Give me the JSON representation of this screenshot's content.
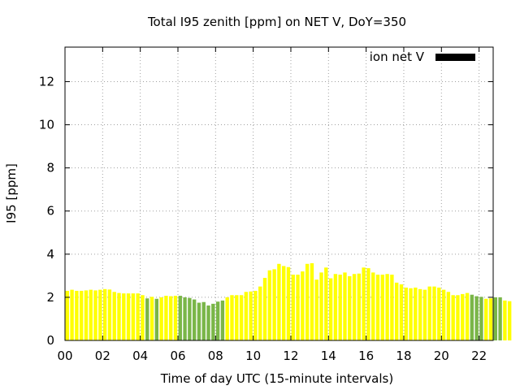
{
  "chart_data": {
    "type": "bar",
    "title": "Total I95 zenith [ppm] on NET V, DoY=350",
    "xlabel": "Time of day UTC (15-minute intervals)",
    "ylabel": "I95 [ppm]",
    "xlim": [
      0,
      22.75
    ],
    "ylim": [
      0,
      13.6
    ],
    "x_ticks": [
      "00",
      "02",
      "04",
      "06",
      "08",
      "10",
      "12",
      "14",
      "16",
      "18",
      "20",
      "22"
    ],
    "y_ticks": [
      "0",
      "2",
      "4",
      "6",
      "8",
      "10",
      "12"
    ],
    "grid": true,
    "legend": {
      "position": "top-right",
      "label": "ion net V",
      "color": "#000000"
    },
    "colors": {
      "yellow": "#ffff00",
      "green": "#7ab648"
    },
    "interval_hours": 0.25,
    "series": [
      {
        "name": "ion net V",
        "values": [
          2.3,
          2.35,
          2.3,
          2.3,
          2.32,
          2.35,
          2.32,
          2.35,
          2.38,
          2.36,
          2.25,
          2.2,
          2.18,
          2.18,
          2.18,
          2.18,
          2.1,
          1.95,
          2.02,
          1.93,
          2.0,
          2.07,
          2.05,
          2.07,
          2.07,
          2.0,
          1.97,
          1.9,
          1.75,
          1.78,
          1.62,
          1.7,
          1.8,
          1.85,
          2.0,
          2.1,
          2.1,
          2.1,
          2.25,
          2.27,
          2.3,
          2.5,
          2.9,
          3.25,
          3.3,
          3.55,
          3.45,
          3.4,
          3.05,
          3.05,
          3.2,
          3.55,
          3.58,
          2.82,
          3.15,
          3.38,
          2.88,
          3.08,
          3.05,
          3.15,
          2.98,
          3.08,
          3.1,
          3.38,
          3.35,
          3.15,
          3.05,
          3.05,
          3.08,
          3.05,
          2.68,
          2.6,
          2.45,
          2.42,
          2.45,
          2.38,
          2.35,
          2.5,
          2.5,
          2.45,
          2.35,
          2.25,
          2.1,
          2.1,
          2.15,
          2.2,
          2.12,
          2.05,
          2.02,
          1.93,
          1.95,
          2.0,
          2.0,
          1.85,
          1.82
        ],
        "green_intervals": [
          17,
          19,
          24,
          25,
          26,
          27,
          28,
          29,
          30,
          31,
          32,
          33,
          86,
          87,
          88,
          91,
          92
        ]
      }
    ]
  }
}
